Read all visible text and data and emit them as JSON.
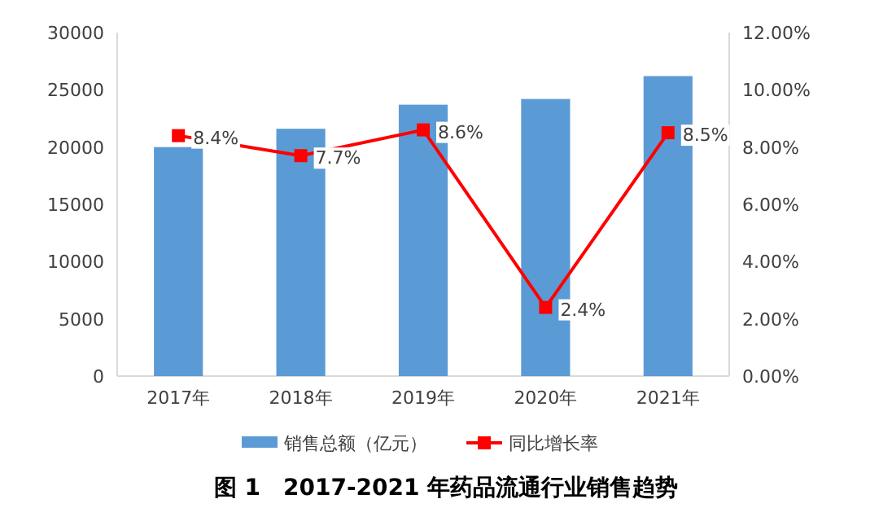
{
  "chart_data": {
    "type": "bar",
    "title": "图 1　2017-2021 年药品流通行业销售趋势",
    "categories": [
      "2017年",
      "2018年",
      "2019年",
      "2020年",
      "2021年"
    ],
    "series": [
      {
        "name": "销售总额（亿元）",
        "color": "#5b9bd5",
        "values": [
          20000,
          21600,
          23700,
          24200,
          26200
        ]
      },
      {
        "name": "同比增长率",
        "type": "line",
        "axis": "y2",
        "color": "#ff0000",
        "marker": "square",
        "values": [
          8.4,
          7.7,
          8.6,
          2.4,
          8.5
        ],
        "value_labels": [
          "8.4%",
          "7.7%",
          "8.6%",
          "2.4%",
          "8.5%"
        ]
      }
    ],
    "ylim": [
      0,
      30000
    ],
    "yticks": [
      0,
      5000,
      10000,
      15000,
      20000,
      25000,
      30000
    ],
    "y2lim": [
      0,
      12
    ],
    "y2ticks": [
      {
        "value": 0,
        "label": "0.00%"
      },
      {
        "value": 2,
        "label": "2.00%"
      },
      {
        "value": 4,
        "label": "4.00%"
      },
      {
        "value": 6,
        "label": "6.00%"
      },
      {
        "value": 8,
        "label": "8.00%"
      },
      {
        "value": 10,
        "label": "10.00%"
      },
      {
        "value": 12,
        "label": "12.00%"
      }
    ],
    "legend": "bottom",
    "grid": false
  }
}
